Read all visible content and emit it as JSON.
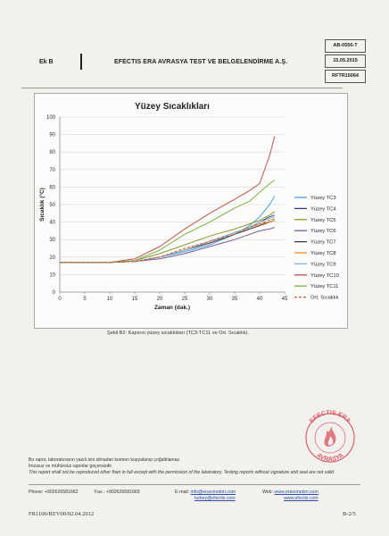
{
  "header": {
    "annex": "Ek B",
    "company": "EFECTIS ERA AVRASYA TEST VE BELGELENDİRME A.Ş.",
    "doc_code": "AB-0556-T",
    "date": "15.05.2015",
    "report_no": "RFTR15064"
  },
  "caption": "Şekil B2: Kapının yüzey sıcaklıkları (TC3-TC11 ve Ort. Sıcaklık).",
  "stamp": {
    "top_text": "EFECTIS ERA",
    "bottom_text": "AVRASYA"
  },
  "footer": {
    "note1": "Bu rapor, laboratuvarın yazılı izni olmadan kısmen kopyalanıp çoğaltılamaz.",
    "note2": "İmzasız ve mühürsüz raporlar geçersizdir.",
    "note3": "This report shall not be reproduced other than in full except with the permission of the laboratory. Testing reports without signature and seal are not valid",
    "phone": "Phone: +902626581662",
    "fax": "Fax.: +902626581669",
    "email_label": "E-mail:",
    "email1": "info@eravonetim.com",
    "email2": "turkey@efectis.com",
    "web_label": "Web:",
    "web1": "www.eravonetim.com",
    "web2": "www.efectis.com",
    "form_code": "FR1106/REV00/02.04.2012",
    "page": "B-2/5"
  },
  "chart_data": {
    "type": "line",
    "title": "Yüzey Sıcaklıkları",
    "xlabel": "Zaman (dak.)",
    "ylabel": "Sıcaklık (°C)",
    "xlim": [
      0,
      45
    ],
    "ylim": [
      0,
      100
    ],
    "xticks": [
      0,
      5,
      10,
      15,
      20,
      25,
      30,
      35,
      40,
      45
    ],
    "yticks": [
      0,
      10,
      20,
      30,
      40,
      50,
      60,
      70,
      80,
      90,
      100
    ],
    "grid": true,
    "legend_position": "right",
    "x": [
      0,
      5,
      10,
      15,
      20,
      25,
      30,
      35,
      38,
      40,
      42,
      43
    ],
    "series": [
      {
        "name": "Yüzey TC3",
        "color": "#4aa3df",
        "dashed": false,
        "values": [
          17,
          17,
          17,
          17.5,
          20,
          23,
          27,
          33,
          38,
          43,
          50,
          55
        ]
      },
      {
        "name": "Yüzey TC4",
        "color": "#2c3f7a",
        "dashed": false,
        "values": [
          17,
          17,
          17,
          17.5,
          20,
          24,
          29,
          34,
          37,
          40,
          43,
          44
        ]
      },
      {
        "name": "Yüzey TC5",
        "color": "#8a9a2a",
        "dashed": false,
        "values": [
          17,
          17,
          17,
          18,
          22,
          27,
          32,
          36,
          39,
          41,
          44,
          46
        ]
      },
      {
        "name": "Yüzey TC6",
        "color": "#7a5a9a",
        "dashed": false,
        "values": [
          17,
          17,
          17,
          17.5,
          19,
          22,
          26,
          30,
          33,
          35,
          36,
          37
        ]
      },
      {
        "name": "Yüzey TC7",
        "color": "#3a3a3a",
        "dashed": false,
        "values": [
          17,
          17,
          17,
          17.5,
          20,
          24,
          28,
          33,
          36,
          38,
          40,
          41
        ]
      },
      {
        "name": "Yüzey TC8",
        "color": "#f08a24",
        "dashed": false,
        "values": [
          17,
          17,
          17,
          17.5,
          20,
          24,
          29,
          34,
          37,
          39,
          40,
          41
        ]
      },
      {
        "name": "Yüzey TC9",
        "color": "#7fb3e0",
        "dashed": false,
        "values": [
          17,
          17,
          17,
          17.5,
          20,
          24,
          29,
          34,
          37,
          40,
          42,
          43
        ]
      },
      {
        "name": "Yüzey TC10",
        "color": "#c0504d",
        "dashed": false,
        "values": [
          17,
          17,
          17,
          19,
          26,
          36,
          45,
          53,
          58,
          62,
          78,
          89
        ]
      },
      {
        "name": "Yüzey TC11",
        "color": "#7cb342",
        "dashed": false,
        "values": [
          17,
          17,
          17,
          18,
          24,
          33,
          40,
          48,
          52,
          57,
          62,
          64
        ]
      },
      {
        "name": "Ort. Sıcaklık",
        "color": "#d9562a",
        "dashed": true,
        "values": [
          17,
          17,
          17,
          17.5,
          20,
          25,
          29,
          33,
          37,
          39,
          41,
          42
        ]
      }
    ]
  }
}
